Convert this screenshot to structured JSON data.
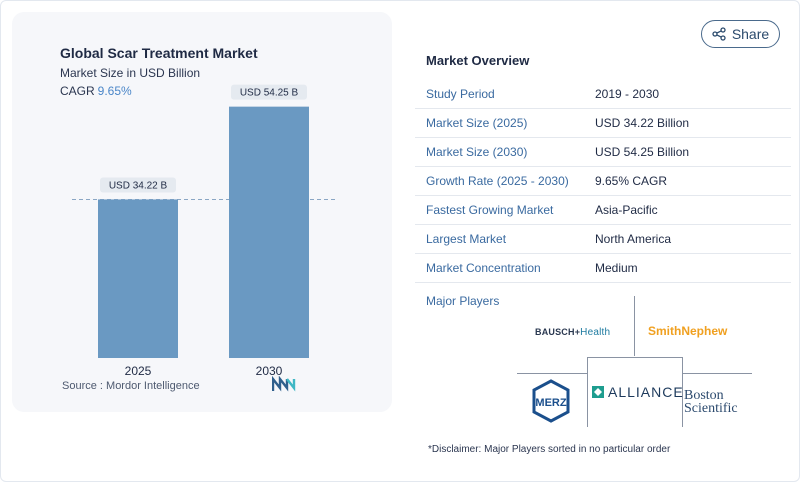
{
  "share": {
    "label": "Share",
    "icon": "share-icon"
  },
  "chart": {
    "title": "Global Scar Treatment Market",
    "subtitle": "Market Size in USD Billion",
    "cagr_label": "CAGR",
    "cagr_value": "9.65%",
    "source_label": "Source :",
    "source_value": "Mordor Intelligence",
    "bar_color": "#6a99c2",
    "label_bg": "#e5eaf0"
  },
  "chart_data": {
    "type": "bar",
    "categories": [
      "2025",
      "2030"
    ],
    "values": [
      34.22,
      54.25
    ],
    "data_labels": [
      "USD 34.22 B",
      "USD 54.25 B"
    ],
    "title": "Global Scar Treatment Market",
    "subtitle": "Market Size in USD Billion",
    "ylim": [
      0,
      60
    ],
    "grid": false,
    "reference_line": 34.22
  },
  "overview": {
    "title": "Market Overview",
    "rows": [
      {
        "label": "Study Period",
        "value": "2019 - 2030"
      },
      {
        "label": "Market Size (2025)",
        "value": "USD 34.22 Billion"
      },
      {
        "label": "Market Size (2030)",
        "value": "USD 54.25 Billion"
      },
      {
        "label": "Growth Rate (2025 - 2030)",
        "value": "9.65% CAGR"
      },
      {
        "label": "Fastest Growing Market",
        "value": "Asia-Pacific"
      },
      {
        "label": "Largest Market",
        "value": "North America"
      },
      {
        "label": "Market Concentration",
        "value": "Medium"
      }
    ]
  },
  "players": {
    "title": "Major Players",
    "logos": {
      "bausch": "BAUSCH",
      "bausch_suffix": "Health",
      "smith": "SmithNephew",
      "merz": "MERZ",
      "alliance": "ALLIANCE",
      "boston_line1": "Boston",
      "boston_line2": "Scientific"
    }
  },
  "disclaimer": "*Disclaimer: Major Players sorted in no particular order"
}
